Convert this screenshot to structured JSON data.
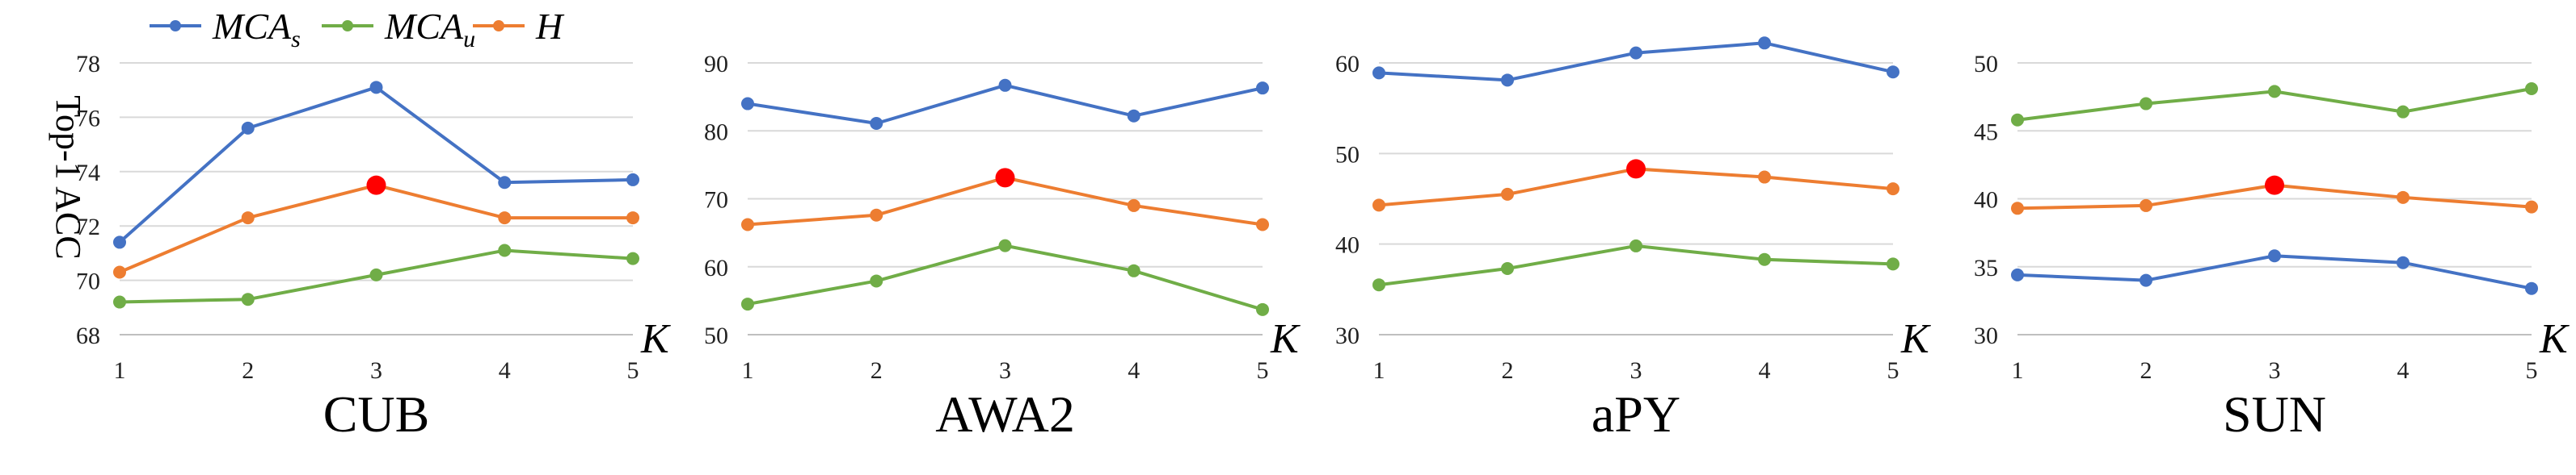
{
  "colors": {
    "MCA_s": "#4472c4",
    "MCA_u": "#70ad47",
    "H": "#ed7d31",
    "best": "#ff0000"
  },
  "legend": [
    {
      "key": "MCA_s",
      "main": "MCA",
      "sub": "s"
    },
    {
      "key": "MCA_u",
      "main": "MCA",
      "sub": "u"
    },
    {
      "key": "H",
      "main": "H",
      "sub": ""
    }
  ],
  "ylabel": "Top-1 ACC",
  "chart_data": [
    {
      "type": "line",
      "title": "CUB",
      "xlabel": "K",
      "x": [
        1,
        2,
        3,
        4,
        5
      ],
      "ylim": [
        68,
        78
      ],
      "yticks": [
        68,
        70,
        72,
        74,
        76,
        78
      ],
      "series": [
        {
          "key": "MCA_s",
          "values": [
            71.4,
            75.6,
            77.1,
            73.6,
            73.7
          ]
        },
        {
          "key": "MCA_u",
          "values": [
            69.2,
            69.3,
            70.2,
            71.1,
            70.8
          ]
        },
        {
          "key": "H",
          "values": [
            70.3,
            72.3,
            73.5,
            72.3,
            72.3
          ]
        }
      ],
      "highlight": {
        "key": "H",
        "index": 2
      }
    },
    {
      "type": "line",
      "title": "AWA2",
      "xlabel": "K",
      "x": [
        1,
        2,
        3,
        4,
        5
      ],
      "ylim": [
        50,
        90
      ],
      "yticks": [
        50,
        60,
        70,
        80,
        90
      ],
      "series": [
        {
          "key": "MCA_s",
          "values": [
            84.0,
            81.1,
            86.7,
            82.2,
            86.3
          ]
        },
        {
          "key": "MCA_u",
          "values": [
            54.5,
            57.9,
            63.1,
            59.4,
            53.7
          ]
        },
        {
          "key": "H",
          "values": [
            66.2,
            67.6,
            73.1,
            69.0,
            66.2
          ]
        }
      ],
      "highlight": {
        "key": "H",
        "index": 2
      }
    },
    {
      "type": "line",
      "title": "aPY",
      "xlabel": "K",
      "x": [
        1,
        2,
        3,
        4,
        5
      ],
      "ylim": [
        30,
        60
      ],
      "yticks": [
        30,
        40,
        50,
        60
      ],
      "series": [
        {
          "key": "MCA_s",
          "values": [
            58.9,
            58.1,
            61.1,
            62.2,
            59.0
          ]
        },
        {
          "key": "MCA_u",
          "values": [
            35.5,
            37.3,
            39.8,
            38.3,
            37.8
          ]
        },
        {
          "key": "H",
          "values": [
            44.3,
            45.5,
            48.3,
            47.4,
            46.1
          ]
        }
      ],
      "highlight": {
        "key": "H",
        "index": 2
      }
    },
    {
      "type": "line",
      "title": "SUN",
      "xlabel": "K",
      "x": [
        1,
        2,
        3,
        4,
        5
      ],
      "ylim": [
        30,
        50
      ],
      "yticks": [
        30,
        35,
        40,
        45,
        50
      ],
      "series": [
        {
          "key": "MCA_s",
          "values": [
            34.4,
            34.0,
            35.8,
            35.3,
            33.4
          ]
        },
        {
          "key": "MCA_u",
          "values": [
            45.8,
            47.0,
            47.9,
            46.4,
            48.1
          ]
        },
        {
          "key": "H",
          "values": [
            39.3,
            39.5,
            41.0,
            40.1,
            39.4
          ]
        }
      ],
      "highlight": {
        "key": "H",
        "index": 2
      }
    }
  ]
}
